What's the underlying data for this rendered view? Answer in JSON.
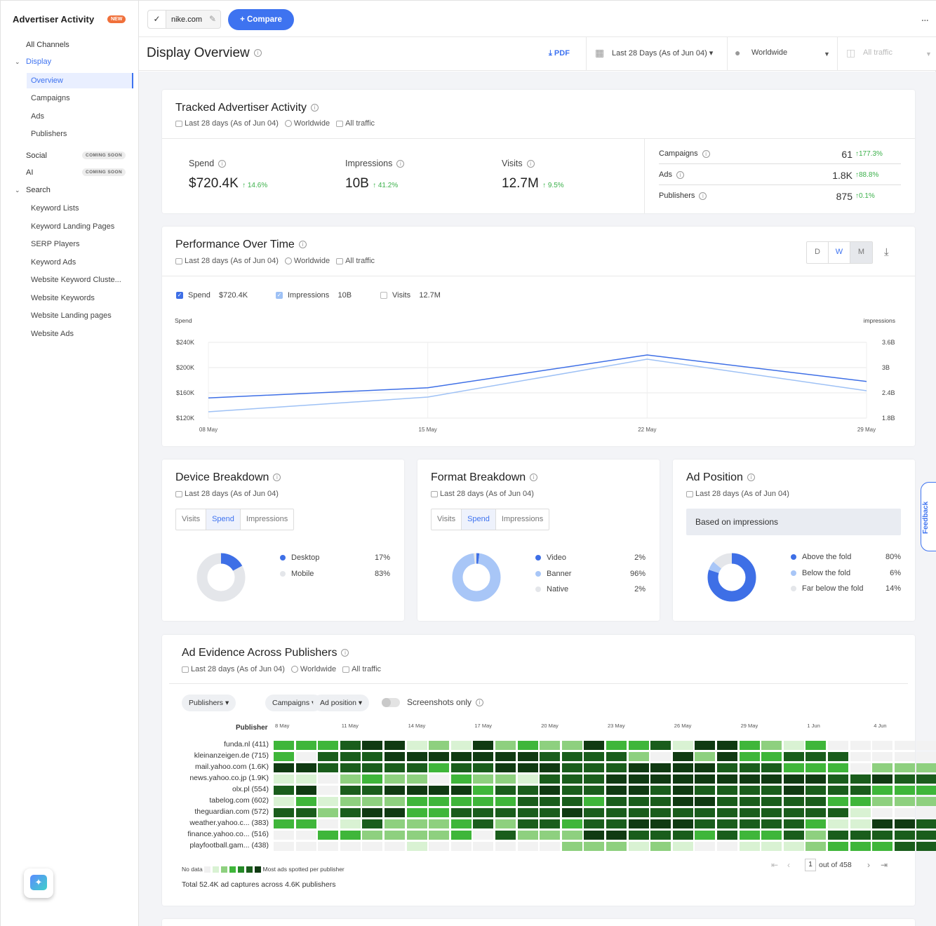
{
  "sidebar": {
    "title": "Advertiser Activity",
    "badge": "NEW",
    "items": [
      {
        "label": "All Channels"
      },
      {
        "label": "Display"
      },
      {
        "label": "Overview"
      },
      {
        "label": "Campaigns"
      },
      {
        "label": "Ads"
      },
      {
        "label": "Publishers"
      },
      {
        "label": "Social",
        "badge": "COMING SOON"
      },
      {
        "label": "AI",
        "badge": "COMING SOON"
      },
      {
        "label": "Search"
      },
      {
        "label": "Keyword Lists"
      },
      {
        "label": "Keyword Landing Pages"
      },
      {
        "label": "SERP Players"
      },
      {
        "label": "Keyword Ads"
      },
      {
        "label": "Website Keyword Cluste..."
      },
      {
        "label": "Website Keywords"
      },
      {
        "label": "Website Landing pages"
      },
      {
        "label": "Website Ads"
      }
    ]
  },
  "topbar": {
    "domain": "nike.com",
    "compare": "+ Compare",
    "kebab": "..."
  },
  "header": {
    "title": "Display Overview",
    "pdf": "PDF",
    "date_range": "Last 28 Days (As of Jun 04)",
    "region": "Worldwide",
    "traffic": "All traffic"
  },
  "meta": {
    "date": "Last 28 days (As of Jun 04)",
    "region": "Worldwide",
    "traffic": "All traffic"
  },
  "tracked": {
    "title": "Tracked Advertiser Activity",
    "kpis": [
      {
        "label": "Spend",
        "value": "$720.4K",
        "delta": "14.6%"
      },
      {
        "label": "Impressions",
        "value": "10B",
        "delta": "41.2%"
      },
      {
        "label": "Visits",
        "value": "12.7M",
        "delta": "9.5%"
      }
    ],
    "side": [
      {
        "label": "Campaigns",
        "value": "61",
        "delta": "177.3%"
      },
      {
        "label": "Ads",
        "value": "1.8K",
        "delta": "88.8%"
      },
      {
        "label": "Publishers",
        "value": "875",
        "delta": "0.1%"
      }
    ]
  },
  "performance": {
    "title": "Performance Over Time",
    "granularity": [
      "D",
      "W",
      "M"
    ],
    "legend": [
      {
        "label": "Spend",
        "value": "$720.4K",
        "checked": true,
        "color": "#3e6fe6"
      },
      {
        "label": "Impressions",
        "value": "10B",
        "checked": true,
        "color": "#9ec1f5"
      },
      {
        "label": "Visits",
        "value": "12.7M",
        "checked": false,
        "color": "#cccccc"
      }
    ],
    "left_axis_title": "Spend",
    "right_axis_title": "impressions"
  },
  "chart_data": {
    "type": "line",
    "x": [
      "08 May",
      "15 May",
      "22 May",
      "29 May"
    ],
    "series": [
      {
        "name": "Spend",
        "axis": "left",
        "values": [
          152000,
          168000,
          220000,
          178000
        ]
      },
      {
        "name": "Impressions",
        "axis": "right",
        "values": [
          1.95,
          2.3,
          3.2,
          2.45
        ]
      }
    ],
    "left_ticks": [
      "$240K",
      "$200K",
      "$160K",
      "$120K"
    ],
    "left_range": [
      120000,
      240000
    ],
    "right_ticks": [
      "3.6B",
      "3B",
      "2.4B",
      "1.8B"
    ],
    "right_range": [
      1.8,
      3.6
    ],
    "grid": true
  },
  "device": {
    "title": "Device Breakdown",
    "tabs": [
      "Visits",
      "Spend",
      "Impressions"
    ],
    "items": [
      {
        "label": "Desktop",
        "pct": "17%",
        "value": 17,
        "color": "#3e6fe6"
      },
      {
        "label": "Mobile",
        "pct": "83%",
        "value": 83,
        "color": "#e4e6ea"
      }
    ]
  },
  "format": {
    "title": "Format Breakdown",
    "tabs": [
      "Visits",
      "Spend",
      "Impressions"
    ],
    "items": [
      {
        "label": "Video",
        "pct": "2%",
        "value": 2,
        "color": "#3e6fe6"
      },
      {
        "label": "Banner",
        "pct": "96%",
        "value": 96,
        "color": "#a8c6f7"
      },
      {
        "label": "Native",
        "pct": "2%",
        "value": 2,
        "color": "#e4e6ea"
      }
    ]
  },
  "position": {
    "title": "Ad Position",
    "based_on": "Based on impressions",
    "items": [
      {
        "label": "Above the fold",
        "pct": "80%",
        "value": 80,
        "color": "#3e6fe6"
      },
      {
        "label": "Below the fold",
        "pct": "6%",
        "value": 6,
        "color": "#a8c6f7"
      },
      {
        "label": "Far below the fold",
        "pct": "14%",
        "value": 14,
        "color": "#e4e6ea"
      }
    ]
  },
  "evidence": {
    "title": "Ad Evidence Across Publishers",
    "filters": [
      "Publishers",
      "Campaigns",
      "Ad position"
    ],
    "screenshots": "Screenshots only",
    "column_title": "Publisher",
    "dates": [
      "8 May",
      "11 May",
      "14 May",
      "17 May",
      "20 May",
      "23 May",
      "26 May",
      "29 May",
      "1 Jun",
      "4 Jun"
    ],
    "publishers": [
      "funda.nl (411)",
      "kleinanzeigen.de (715)",
      "mail.yahoo.com (1.6K)",
      "news.yahoo.co.jp (1.9K)",
      "olx.pl (554)",
      "tabelog.com (602)",
      "theguardian.com (572)",
      "weather.yahoo.c... (383)",
      "finance.yahoo.co... (516)",
      "playfootball.gam... (438)"
    ],
    "levels": [
      "3334551215232253341553213000000",
      "3044455555554444205253344400000",
      "5544444344555444555544433302220",
      "1102322032214445555555555445443",
      "4504455553445445545444454443330",
      "1312223333344434445544444332222",
      "4424553344444544444444444410000",
      "3301422234244344555444443115545",
      "0033222230422255444343342444444",
      "0000001000000222121001112333444"
    ],
    "legend_no_data": "No data",
    "legend_most": "Most ads spotted per publisher",
    "total": "Total 52.4K ad captures across 4.6K publishers",
    "page": "1",
    "page_of": "out of 458"
  },
  "feedback": "Feedback"
}
